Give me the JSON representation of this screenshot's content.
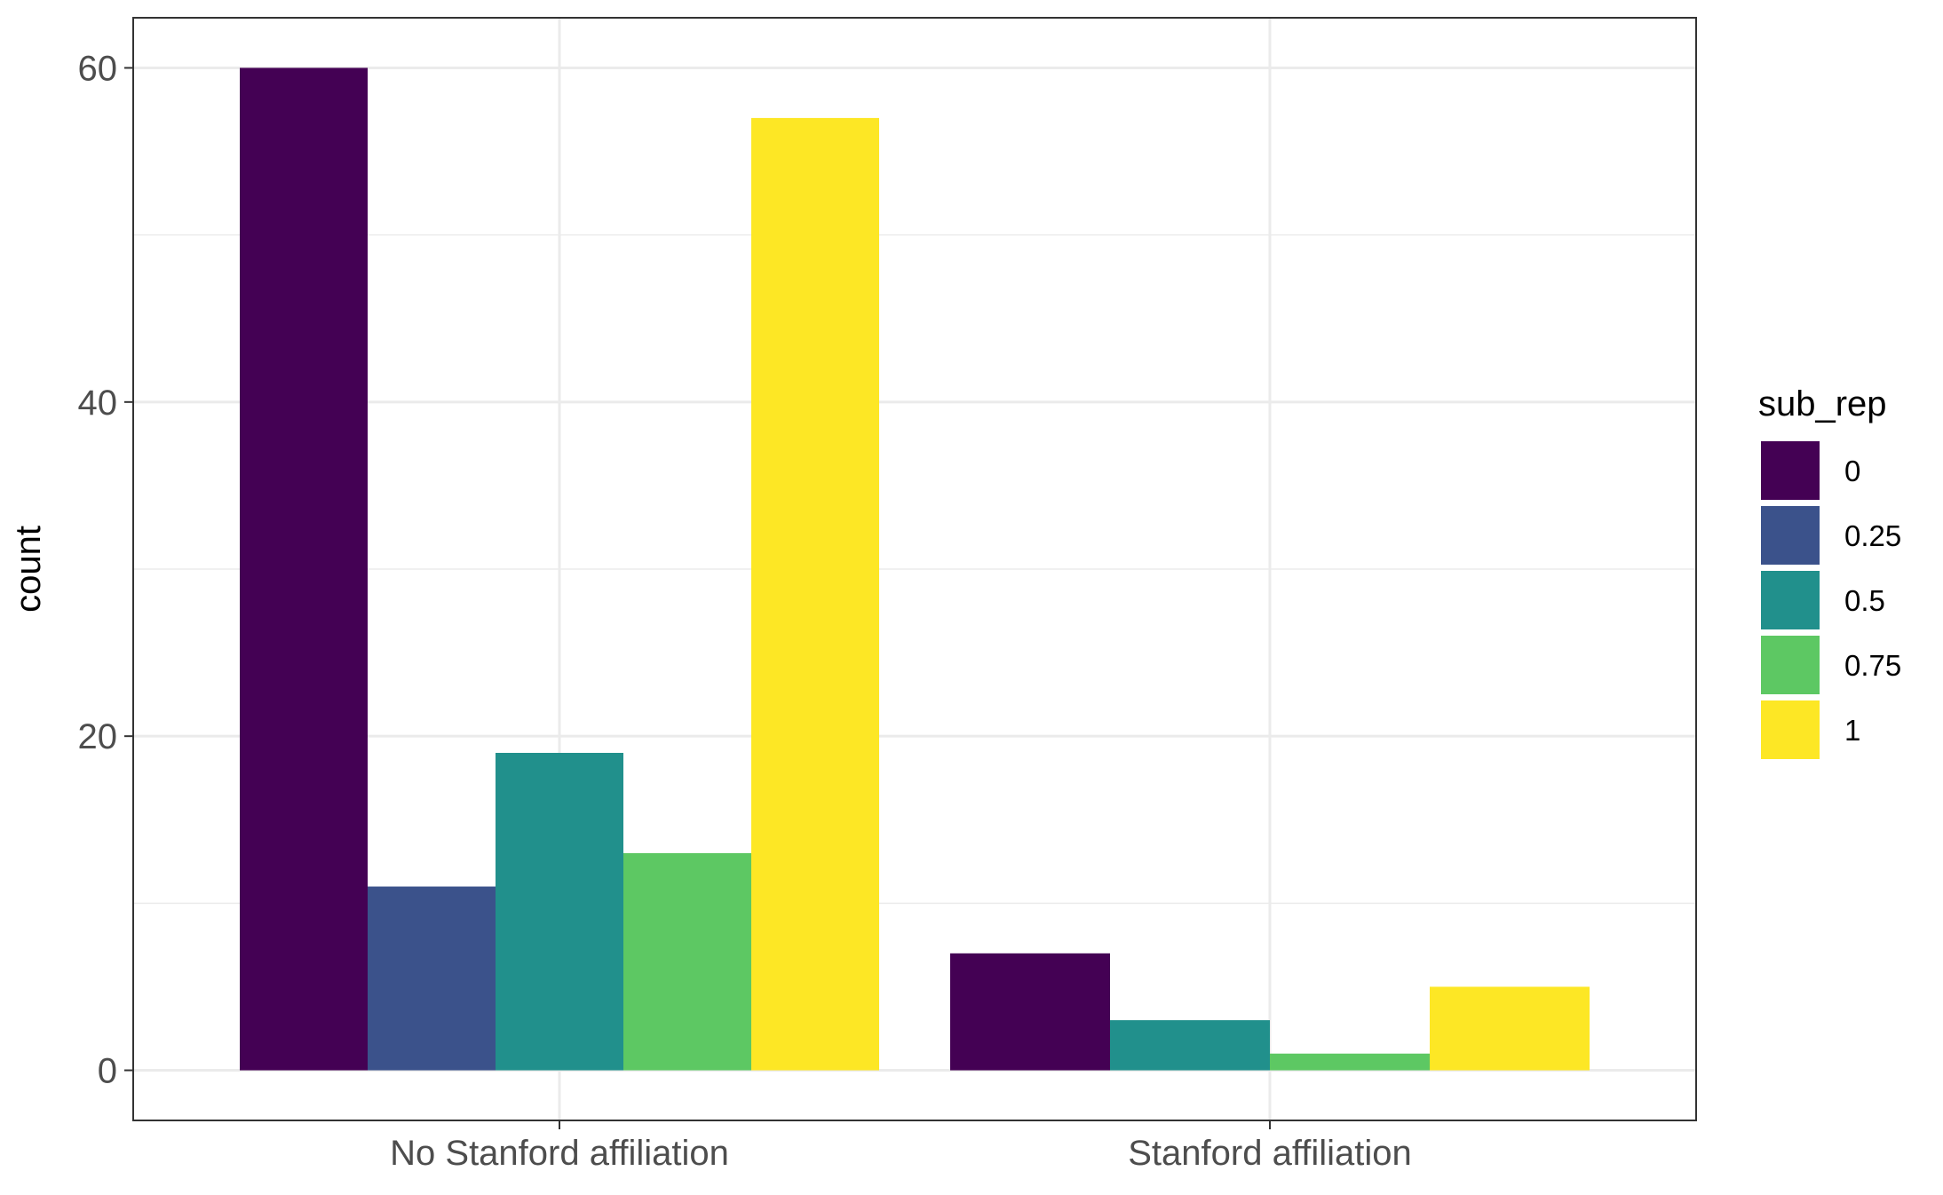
{
  "chart_data": {
    "type": "bar",
    "xlabel": "",
    "ylabel": "count",
    "ylim": [
      -3,
      63
    ],
    "yticks": [
      0,
      20,
      40,
      60
    ],
    "grid": true,
    "legend_position": "right",
    "categories": [
      "No Stanford affiliation",
      "Stanford affiliation"
    ],
    "legend_title": "sub_rep",
    "series": [
      {
        "name": "0",
        "color": "#440154",
        "values": [
          60,
          7
        ]
      },
      {
        "name": "0.25",
        "color": "#3B528B",
        "values": [
          11,
          0
        ]
      },
      {
        "name": "0.5",
        "color": "#21908C",
        "values": [
          19,
          3
        ]
      },
      {
        "name": "0.75",
        "color": "#5DC863",
        "values": [
          13,
          1
        ]
      },
      {
        "name": "1",
        "color": "#FDE725",
        "values": [
          57,
          5
        ]
      }
    ]
  }
}
